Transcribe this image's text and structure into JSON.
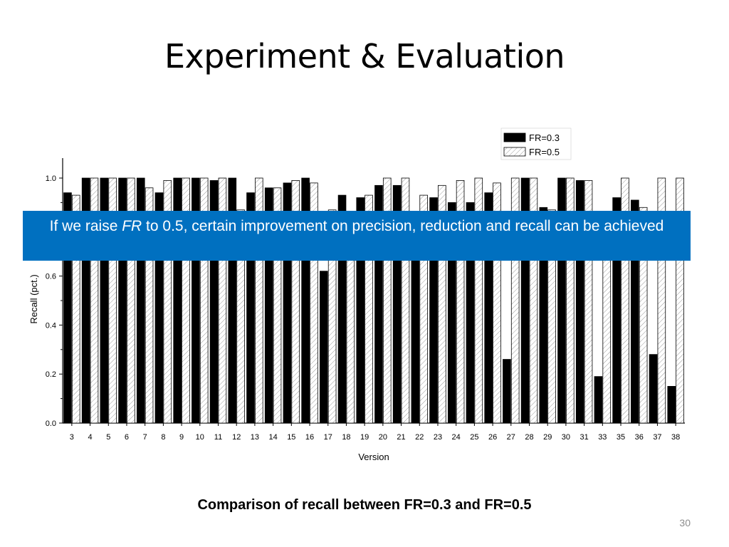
{
  "slide": {
    "title": "Experiment & Evaluation",
    "callout_before": "If we raise ",
    "callout_em": "FR",
    "callout_after": " to 0.5, certain improvement on precision, reduction and recall can be achieved",
    "caption": "Comparison of recall between FR=0.3 and FR=0.5",
    "page_number": "30"
  },
  "colors": {
    "series_fr03": "#000000",
    "series_fr05_hatch": "#9a9a9a",
    "callout_background": "#0070c0",
    "callout_text": "#ffffff"
  },
  "chart_data": {
    "type": "bar",
    "title": "",
    "xlabel": "Version",
    "ylabel": "Recall (pct.)",
    "ylim": [
      0,
      1.0
    ],
    "yticks": [
      "0.0",
      "0.2",
      "0.4",
      "0.6",
      "0.8",
      "1.0"
    ],
    "legend_position": "top-right",
    "categories": [
      "3",
      "4",
      "5",
      "6",
      "7",
      "8",
      "9",
      "10",
      "11",
      "12",
      "13",
      "14",
      "15",
      "16",
      "17",
      "18",
      "19",
      "20",
      "21",
      "22",
      "23",
      "24",
      "25",
      "26",
      "27",
      "28",
      "29",
      "30",
      "31",
      "33",
      "35",
      "36",
      "37",
      "38"
    ],
    "series": [
      {
        "name": "FR=0.3",
        "pattern": "solid",
        "values": [
          0.94,
          1.0,
          1.0,
          1.0,
          1.0,
          0.94,
          1.0,
          1.0,
          0.99,
          1.0,
          0.94,
          0.96,
          0.98,
          1.0,
          0.62,
          0.93,
          0.92,
          0.97,
          0.97,
          0.85,
          0.92,
          0.9,
          0.9,
          0.94,
          0.26,
          1.0,
          0.88,
          1.0,
          0.99,
          0.19,
          0.92,
          0.91,
          0.28,
          0.15
        ]
      },
      {
        "name": "FR=0.5",
        "pattern": "hatched",
        "values": [
          0.93,
          1.0,
          1.0,
          1.0,
          0.96,
          0.99,
          1.0,
          1.0,
          1.0,
          0.87,
          1.0,
          0.96,
          0.99,
          0.98,
          0.87,
          0.86,
          0.93,
          1.0,
          1.0,
          0.93,
          0.97,
          0.99,
          1.0,
          0.98,
          1.0,
          1.0,
          0.87,
          1.0,
          0.99,
          0.86,
          1.0,
          0.88,
          1.0,
          1.0
        ]
      }
    ]
  }
}
